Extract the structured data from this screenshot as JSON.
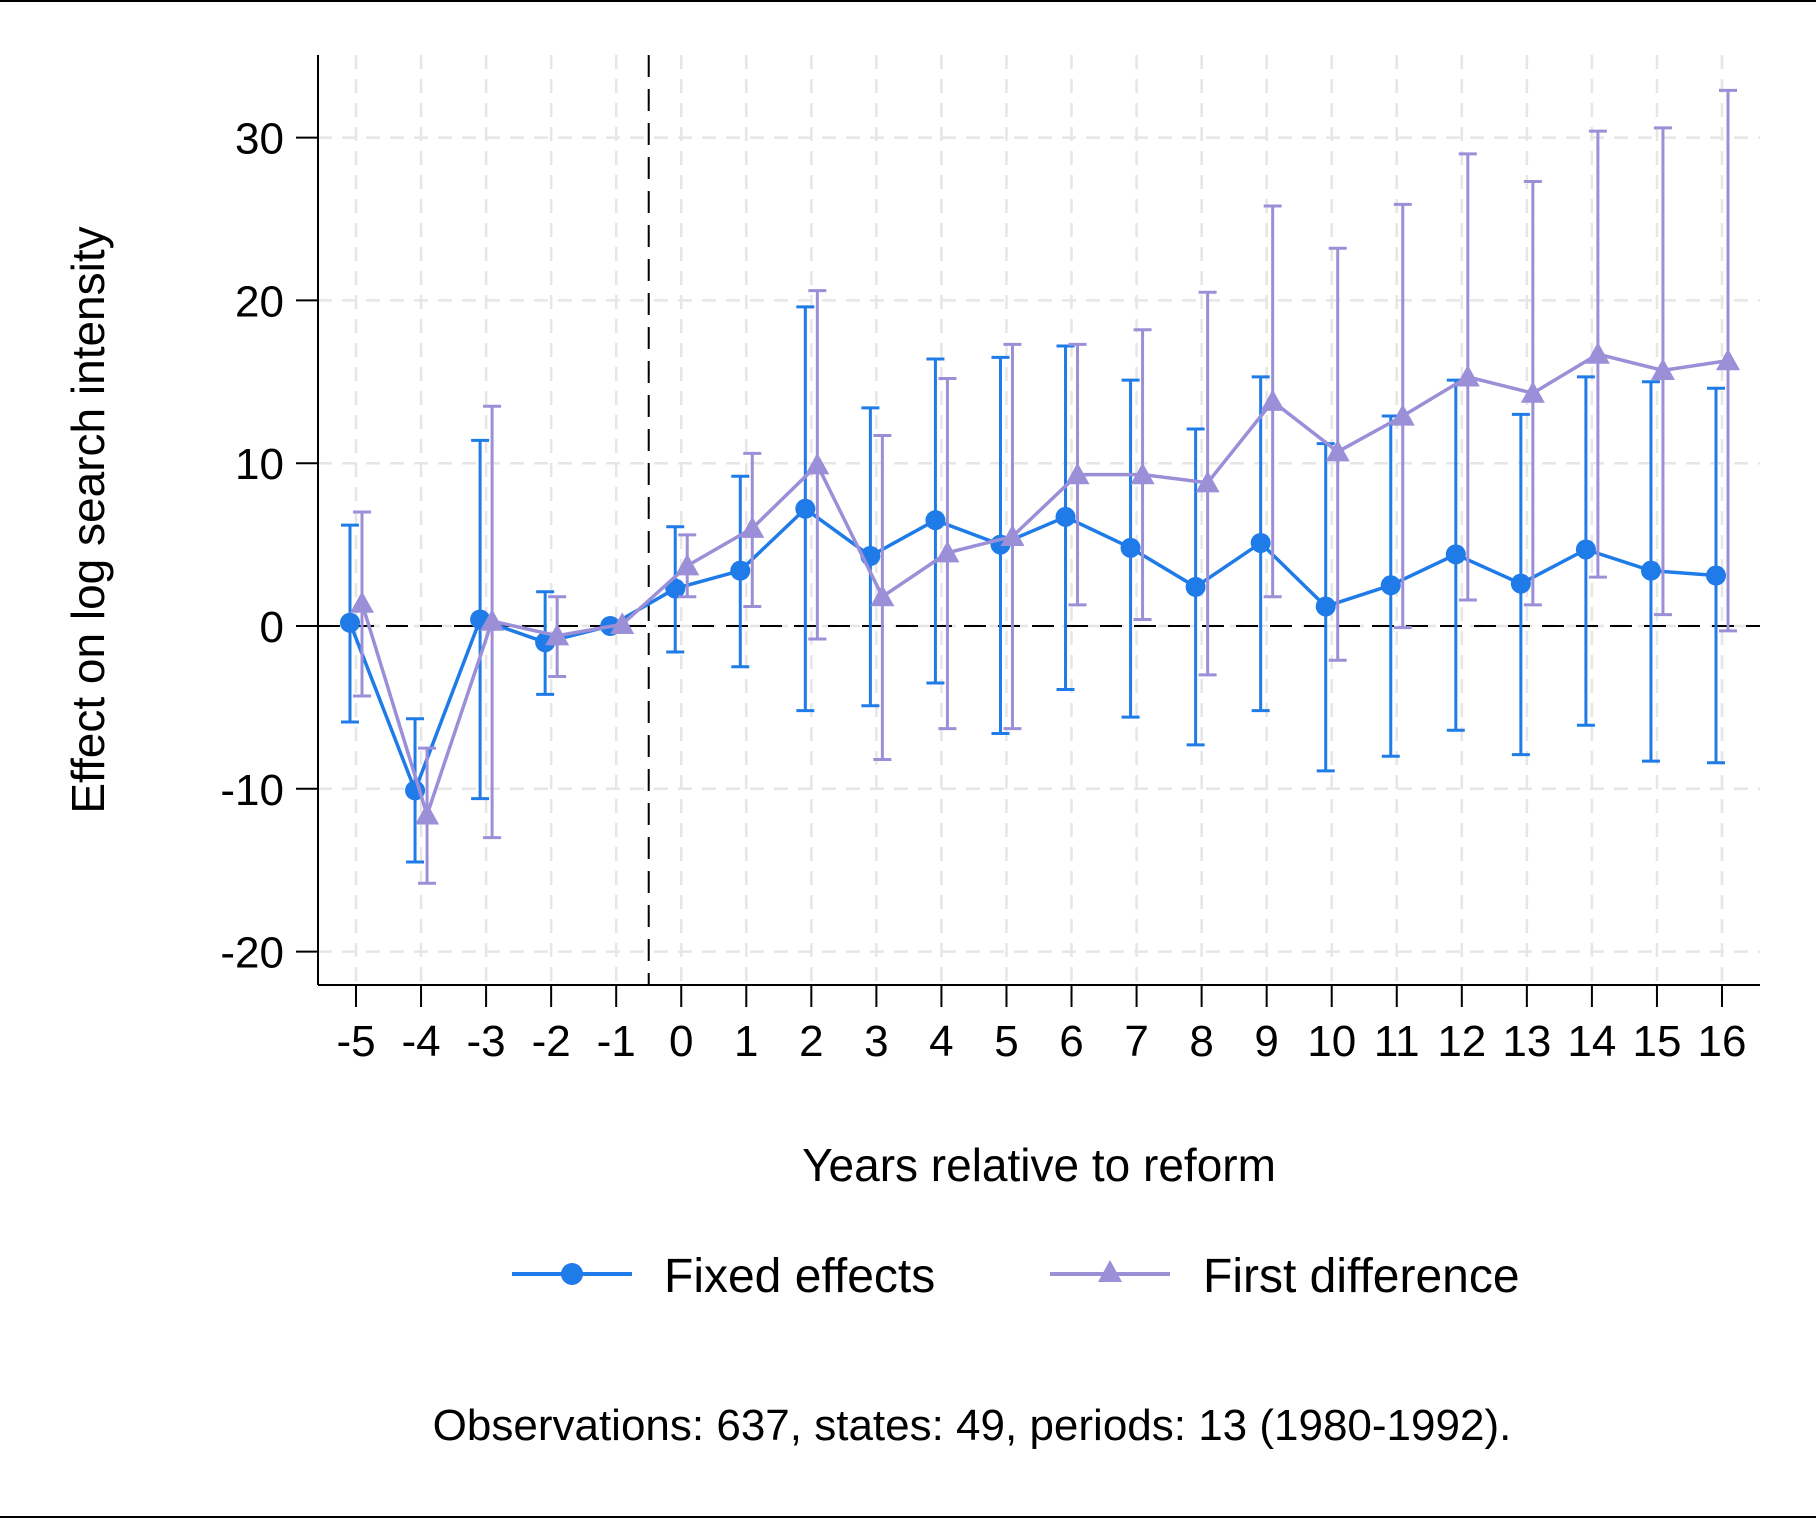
{
  "chart_data": {
    "type": "line",
    "xlabel": "Years relative to reform",
    "ylabel": "Effect on log search intensity",
    "note": "Observations: 637, states: 49, periods: 13 (1980-1992).",
    "ylim": [
      -22,
      35
    ],
    "yticks": [
      -20,
      -10,
      0,
      10,
      20,
      30
    ],
    "ytick_labels": [
      "-20",
      "-10",
      "0",
      "10",
      "20",
      "30"
    ],
    "x": [
      -5,
      -4,
      -3,
      -2,
      -1,
      0,
      1,
      2,
      3,
      4,
      5,
      6,
      7,
      8,
      9,
      10,
      11,
      12,
      13,
      14,
      15,
      16
    ],
    "x_labels": [
      "-5",
      "-4",
      "-3",
      "-2",
      "-1",
      "0",
      "1",
      "2",
      "3",
      "4",
      "5",
      "6",
      "7",
      "8",
      "9",
      "10",
      "11",
      "12",
      "13",
      "14",
      "15",
      "16"
    ],
    "reference_lines": {
      "horizontal": 0,
      "vertical": -0.5
    },
    "grid": true,
    "legend_position": "bottom",
    "series": [
      {
        "name": "Fixed effects",
        "marker": "circle",
        "color": "#1f7be8",
        "values": [
          0.2,
          -10.1,
          0.4,
          -1.0,
          0.0,
          2.3,
          3.4,
          7.2,
          4.3,
          6.5,
          5.0,
          6.7,
          4.8,
          2.4,
          5.1,
          1.2,
          2.5,
          4.4,
          2.6,
          4.7,
          3.4,
          3.1
        ],
        "ci_low": [
          -5.9,
          -14.5,
          -10.6,
          -4.2,
          0.0,
          -1.6,
          -2.5,
          -5.2,
          -4.9,
          -3.5,
          -6.6,
          -3.9,
          -5.6,
          -7.3,
          -5.2,
          -8.9,
          -8.0,
          -6.4,
          -7.9,
          -6.1,
          -8.3,
          -8.4
        ],
        "ci_high": [
          6.2,
          -5.7,
          11.4,
          2.1,
          0.0,
          6.1,
          9.2,
          19.6,
          13.4,
          16.4,
          16.5,
          17.2,
          15.1,
          12.1,
          15.3,
          11.2,
          12.9,
          15.1,
          13.0,
          15.3,
          15.0,
          14.6
        ]
      },
      {
        "name": "First difference",
        "marker": "triangle",
        "color": "#9b8fd8",
        "values": [
          1.4,
          -11.6,
          0.3,
          -0.6,
          0.1,
          3.7,
          6.0,
          9.9,
          1.8,
          4.5,
          5.5,
          9.3,
          9.3,
          8.8,
          13.8,
          10.7,
          12.9,
          15.3,
          14.3,
          16.7,
          15.7,
          16.3
        ],
        "ci_low": [
          -4.3,
          -15.8,
          -13.0,
          -3.1,
          0.1,
          1.8,
          1.2,
          -0.8,
          -8.2,
          -6.3,
          -6.3,
          1.3,
          0.4,
          -3.0,
          1.8,
          -2.1,
          -0.1,
          1.6,
          1.3,
          3.0,
          0.7,
          -0.3
        ],
        "ci_high": [
          7.0,
          -7.5,
          13.5,
          1.8,
          0.1,
          5.6,
          10.6,
          20.6,
          11.7,
          15.2,
          17.3,
          17.3,
          18.2,
          20.5,
          25.8,
          23.2,
          25.9,
          29.0,
          27.3,
          30.4,
          30.6,
          32.9
        ]
      }
    ]
  }
}
